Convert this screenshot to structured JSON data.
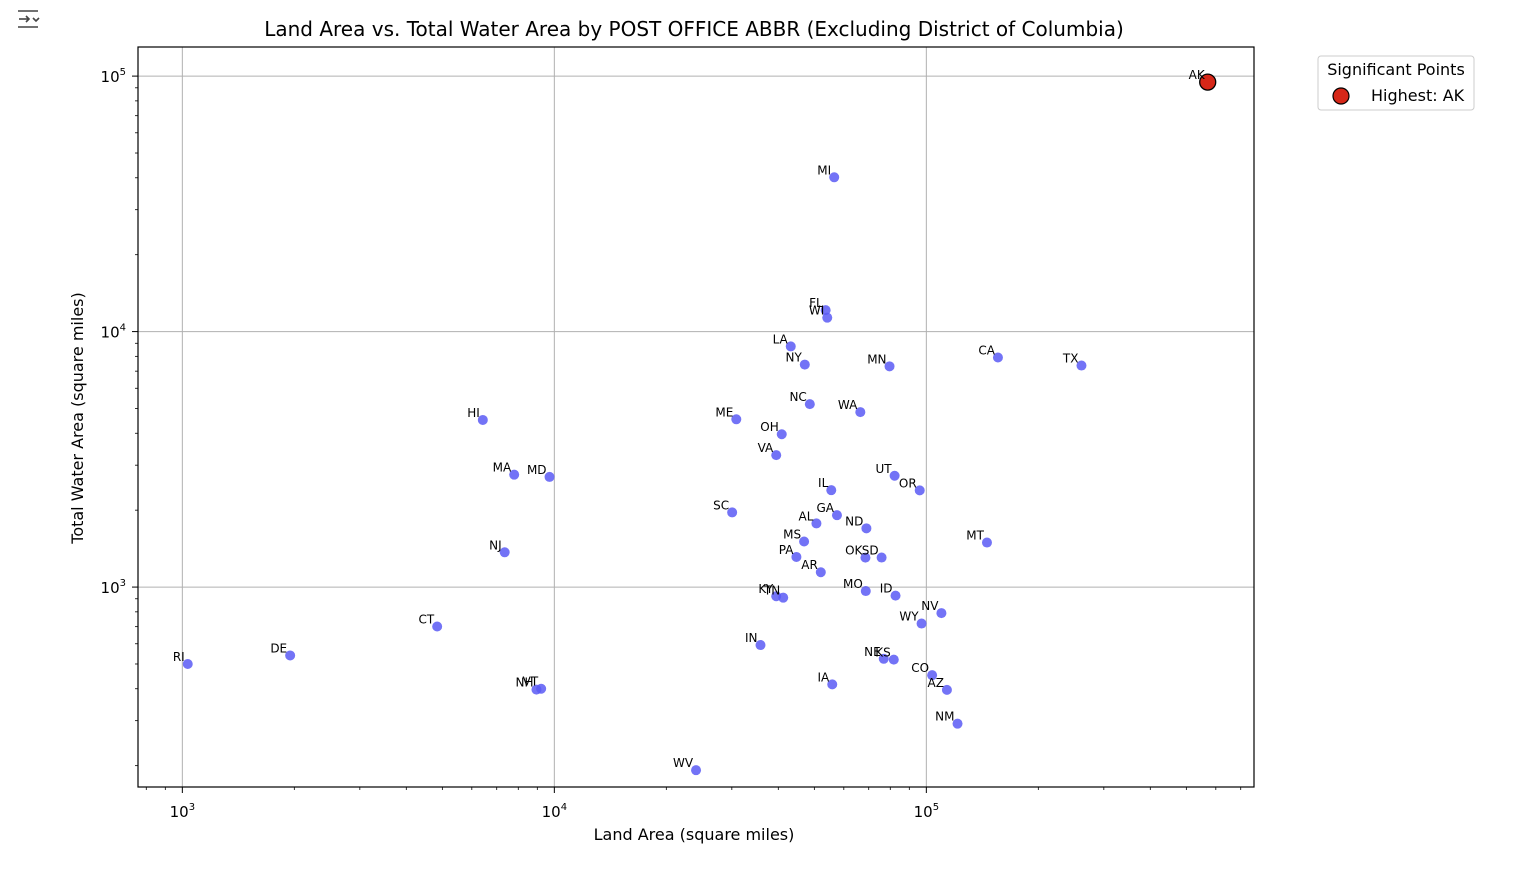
{
  "toolbar": {
    "icon": "output-toggle-icon"
  },
  "chart_data": {
    "type": "scatter",
    "title": "Land Area vs. Total Water Area by POST OFFICE ABBR (Excluding District of Columbia)",
    "xlabel": "Land Area (square miles)",
    "ylabel": "Total Water Area (square miles)",
    "xscale": "log",
    "yscale": "log",
    "xlim": [
      760,
      760000
    ],
    "ylim": [
      165,
      130000
    ],
    "xticks": [
      {
        "base": "10",
        "exp": "3",
        "value": 1000
      },
      {
        "base": "10",
        "exp": "4",
        "value": 10000
      },
      {
        "base": "10",
        "exp": "5",
        "value": 100000
      }
    ],
    "yticks": [
      {
        "base": "10",
        "exp": "3",
        "value": 1000
      },
      {
        "base": "10",
        "exp": "4",
        "value": 10000
      },
      {
        "base": "10",
        "exp": "5",
        "value": 100000
      }
    ],
    "grid": true,
    "point_color": "#5b5bf5",
    "highlight_color": "#d62718",
    "legend": {
      "title": "Significant Points",
      "placement": "outside-top-right",
      "entries": [
        {
          "label": "Highest: AK",
          "color": "#d62718"
        }
      ]
    },
    "points": [
      {
        "label": "AK",
        "x": 570641,
        "y": 94743,
        "highlight": true
      },
      {
        "label": "MI",
        "x": 56539,
        "y": 40175
      },
      {
        "label": "FL",
        "x": 53625,
        "y": 12133
      },
      {
        "label": "WI",
        "x": 54158,
        "y": 11339
      },
      {
        "label": "LA",
        "x": 43204,
        "y": 8750
      },
      {
        "label": "NY",
        "x": 47126,
        "y": 7429
      },
      {
        "label": "MN",
        "x": 79627,
        "y": 7311
      },
      {
        "label": "CA",
        "x": 155779,
        "y": 7916
      },
      {
        "label": "TX",
        "x": 261232,
        "y": 7365
      },
      {
        "label": "NC",
        "x": 48618,
        "y": 5201
      },
      {
        "label": "WA",
        "x": 66456,
        "y": 4842
      },
      {
        "label": "ME",
        "x": 30843,
        "y": 4537
      },
      {
        "label": "HI",
        "x": 6423,
        "y": 4509
      },
      {
        "label": "OH",
        "x": 40861,
        "y": 3965
      },
      {
        "label": "VA",
        "x": 39490,
        "y": 3285
      },
      {
        "label": "MA",
        "x": 7800,
        "y": 2754
      },
      {
        "label": "MD",
        "x": 9707,
        "y": 2699
      },
      {
        "label": "UT",
        "x": 82170,
        "y": 2727
      },
      {
        "label": "OR",
        "x": 95988,
        "y": 2391
      },
      {
        "label": "IL",
        "x": 55519,
        "y": 2395
      },
      {
        "label": "SC",
        "x": 30061,
        "y": 1960
      },
      {
        "label": "GA",
        "x": 57513,
        "y": 1912
      },
      {
        "label": "AL",
        "x": 50645,
        "y": 1775
      },
      {
        "label": "ND",
        "x": 69001,
        "y": 1698
      },
      {
        "label": "MT",
        "x": 145546,
        "y": 1494
      },
      {
        "label": "MS",
        "x": 46923,
        "y": 1508
      },
      {
        "label": "NJ",
        "x": 7354,
        "y": 1368
      },
      {
        "label": "PA",
        "x": 44743,
        "y": 1312
      },
      {
        "label": "OK",
        "x": 68595,
        "y": 1304
      },
      {
        "label": "SD",
        "x": 75811,
        "y": 1305
      },
      {
        "label": "AR",
        "x": 52035,
        "y": 1143
      },
      {
        "label": "MO",
        "x": 68742,
        "y": 965
      },
      {
        "label": "ID",
        "x": 82643,
        "y": 926
      },
      {
        "label": "KY",
        "x": 39486,
        "y": 921
      },
      {
        "label": "TN",
        "x": 41235,
        "y": 909
      },
      {
        "label": "NV",
        "x": 109781,
        "y": 791
      },
      {
        "label": "WY",
        "x": 97093,
        "y": 720
      },
      {
        "label": "CT",
        "x": 4842,
        "y": 701
      },
      {
        "label": "IN",
        "x": 35826,
        "y": 593
      },
      {
        "label": "RI",
        "x": 1034,
        "y": 500
      },
      {
        "label": "DE",
        "x": 1949,
        "y": 540
      },
      {
        "label": "NE",
        "x": 76824,
        "y": 524
      },
      {
        "label": "KS",
        "x": 81759,
        "y": 520
      },
      {
        "label": "CO",
        "x": 103642,
        "y": 452
      },
      {
        "label": "AZ",
        "x": 113594,
        "y": 396
      },
      {
        "label": "IA",
        "x": 55857,
        "y": 416
      },
      {
        "label": "NH",
        "x": 8953,
        "y": 397
      },
      {
        "label": "VT",
        "x": 9217,
        "y": 400
      },
      {
        "label": "NM",
        "x": 121298,
        "y": 292
      },
      {
        "label": "WV",
        "x": 24038,
        "y": 192
      }
    ]
  }
}
